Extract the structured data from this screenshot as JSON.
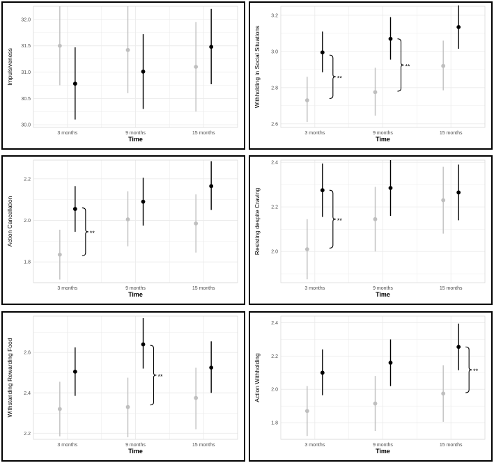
{
  "colors": {
    "group_a": "#bfbfbf",
    "group_b": "#000000",
    "grid": "#ebebeb"
  },
  "chart_data": [
    {
      "type": "scatter",
      "ylabel": "Impulsiveness",
      "xlabel": "Time",
      "categories": [
        "3 months",
        "9 months",
        "15 months"
      ],
      "ylim": [
        29.95,
        32.25
      ],
      "yticks": [
        30.0,
        30.5,
        31.0,
        31.5,
        32.0
      ],
      "ytick_labels": [
        "30.0",
        "30.5",
        "31.0",
        "31.5",
        "32.0"
      ],
      "series": [
        {
          "color": "#bfbfbf",
          "values": [
            31.5,
            31.42,
            31.1
          ],
          "lower": [
            30.75,
            30.6,
            30.25
          ],
          "upper": [
            32.25,
            32.25,
            31.95
          ]
        },
        {
          "color": "#000000",
          "values": [
            30.78,
            31.01,
            31.48
          ],
          "lower": [
            30.1,
            30.3,
            30.77
          ],
          "upper": [
            31.47,
            31.72,
            32.2
          ]
        }
      ],
      "annotations": []
    },
    {
      "type": "scatter",
      "ylabel": "Withholding in Social Situations",
      "xlabel": "Time",
      "categories": [
        "3 months",
        "9 months",
        "15 months"
      ],
      "ylim": [
        2.58,
        3.25
      ],
      "yticks": [
        2.6,
        2.8,
        3.0,
        3.2
      ],
      "ytick_labels": [
        "2.6",
        "2.8",
        "3.0",
        "3.2"
      ],
      "series": [
        {
          "color": "#bfbfbf",
          "values": [
            2.73,
            2.775,
            2.92
          ],
          "lower": [
            2.61,
            2.645,
            2.785
          ],
          "upper": [
            2.86,
            2.91,
            3.06
          ]
        },
        {
          "color": "#000000",
          "values": [
            2.995,
            3.07,
            3.135
          ],
          "lower": [
            2.885,
            2.955,
            3.015
          ],
          "upper": [
            3.11,
            3.19,
            3.255
          ]
        }
      ],
      "annotations": [
        {
          "category": 0,
          "from": 2.74,
          "to": 2.98,
          "label": "**"
        },
        {
          "category": 1,
          "from": 2.78,
          "to": 3.07,
          "label": "**"
        }
      ]
    },
    {
      "type": "scatter",
      "ylabel": "Action Cancellation",
      "xlabel": "Time",
      "categories": [
        "3 months",
        "9 months",
        "15 months"
      ],
      "ylim": [
        1.7,
        2.29
      ],
      "yticks": [
        1.8,
        2.0,
        2.2
      ],
      "ytick_labels": [
        "1.8",
        "2.0",
        "2.2"
      ],
      "series": [
        {
          "color": "#bfbfbf",
          "values": [
            1.835,
            2.005,
            1.985
          ],
          "lower": [
            1.715,
            1.875,
            1.845
          ],
          "upper": [
            1.955,
            2.14,
            2.125
          ]
        },
        {
          "color": "#000000",
          "values": [
            2.055,
            2.09,
            2.165
          ],
          "lower": [
            1.945,
            1.975,
            2.05
          ],
          "upper": [
            2.165,
            2.205,
            2.285
          ]
        }
      ],
      "annotations": [
        {
          "category": 0,
          "from": 1.83,
          "to": 2.06,
          "label": "**"
        }
      ]
    },
    {
      "type": "scatter",
      "ylabel": "Resisting despite Craving",
      "xlabel": "Time",
      "categories": [
        "3 months",
        "9 months",
        "15 months"
      ],
      "ylim": [
        1.86,
        2.41
      ],
      "yticks": [
        2.0,
        2.2,
        2.4
      ],
      "ytick_labels": [
        "2.0",
        "2.2",
        "2.4"
      ],
      "series": [
        {
          "color": "#bfbfbf",
          "values": [
            2.01,
            2.145,
            2.23
          ],
          "lower": [
            1.875,
            2.0,
            2.08
          ],
          "upper": [
            2.145,
            2.29,
            2.38
          ]
        },
        {
          "color": "#000000",
          "values": [
            2.275,
            2.285,
            2.265
          ],
          "lower": [
            2.155,
            2.16,
            2.14
          ],
          "upper": [
            2.395,
            2.41,
            2.39
          ]
        }
      ],
      "annotations": [
        {
          "category": 0,
          "from": 2.015,
          "to": 2.275,
          "label": "**"
        }
      ]
    },
    {
      "type": "scatter",
      "ylabel": "Withstanding Rewarding Food",
      "xlabel": "Time",
      "categories": [
        "3 months",
        "9 months",
        "15 months"
      ],
      "ylim": [
        2.17,
        2.78
      ],
      "yticks": [
        2.2,
        2.4,
        2.6
      ],
      "ytick_labels": [
        "2.2",
        "2.4",
        "2.6"
      ],
      "series": [
        {
          "color": "#bfbfbf",
          "values": [
            2.32,
            2.33,
            2.375
          ],
          "lower": [
            2.185,
            2.18,
            2.22
          ],
          "upper": [
            2.455,
            2.475,
            2.525
          ]
        },
        {
          "color": "#000000",
          "values": [
            2.505,
            2.64,
            2.525
          ],
          "lower": [
            2.385,
            2.52,
            2.4
          ],
          "upper": [
            2.625,
            2.77,
            2.655
          ]
        }
      ],
      "annotations": [
        {
          "category": 1,
          "from": 2.34,
          "to": 2.635,
          "label": "**"
        }
      ]
    },
    {
      "type": "scatter",
      "ylabel": "Action Withholding",
      "xlabel": "Time",
      "categories": [
        "3 months",
        "9 months",
        "15 months"
      ],
      "ylim": [
        1.7,
        2.44
      ],
      "yticks": [
        1.8,
        2.0,
        2.2,
        2.4
      ],
      "ytick_labels": [
        "1.8",
        "2.0",
        "2.2",
        "2.4"
      ],
      "series": [
        {
          "color": "#bfbfbf",
          "values": [
            1.87,
            1.915,
            1.975
          ],
          "lower": [
            1.72,
            1.75,
            1.805
          ],
          "upper": [
            2.02,
            2.08,
            2.145
          ]
        },
        {
          "color": "#000000",
          "values": [
            2.1,
            2.16,
            2.255
          ],
          "lower": [
            1.965,
            2.02,
            2.115
          ],
          "upper": [
            2.24,
            2.3,
            2.395
          ]
        }
      ],
      "annotations": [
        {
          "category": 2,
          "from": 1.98,
          "to": 2.255,
          "label": "**"
        }
      ]
    }
  ]
}
